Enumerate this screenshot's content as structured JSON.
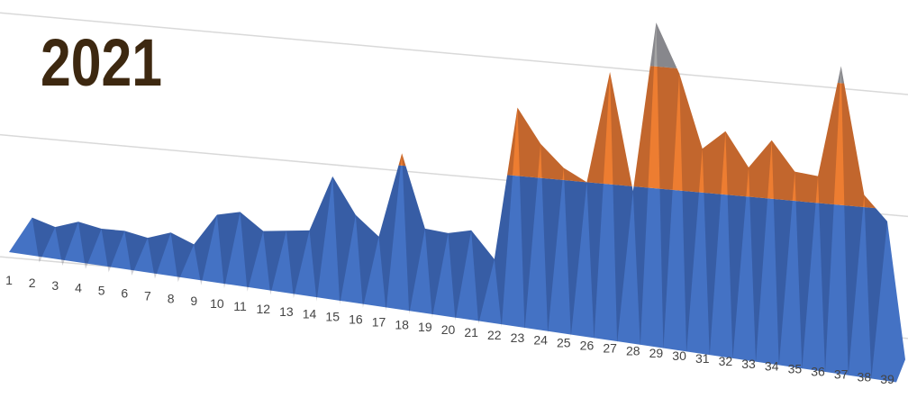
{
  "chart_data": {
    "type": "surface",
    "title": "2021",
    "categories": [
      "1",
      "2",
      "3",
      "4",
      "5",
      "6",
      "7",
      "8",
      "9",
      "10",
      "11",
      "12",
      "13",
      "14",
      "15",
      "16",
      "17",
      "18",
      "19",
      "20",
      "21",
      "22",
      "23",
      "24",
      "25",
      "26",
      "27",
      "28",
      "29",
      "30",
      "31",
      "32",
      "33",
      "34",
      "35",
      "36",
      "37",
      "38",
      "39"
    ],
    "values": [
      0,
      15,
      12,
      15,
      13,
      13,
      11,
      14,
      10,
      23,
      25,
      18,
      19,
      20,
      43,
      28,
      20,
      55,
      25,
      24,
      26,
      15,
      78,
      64,
      55,
      50,
      96,
      48,
      118,
      98,
      68,
      76,
      62,
      74,
      62,
      61,
      107,
      55,
      45
    ],
    "ylim": [
      0,
      120
    ],
    "yticks": [
      0,
      50,
      100
    ],
    "grid": true,
    "band_colors": [
      "#4472c4",
      "#ed7d31",
      "#a5a5a5"
    ]
  }
}
